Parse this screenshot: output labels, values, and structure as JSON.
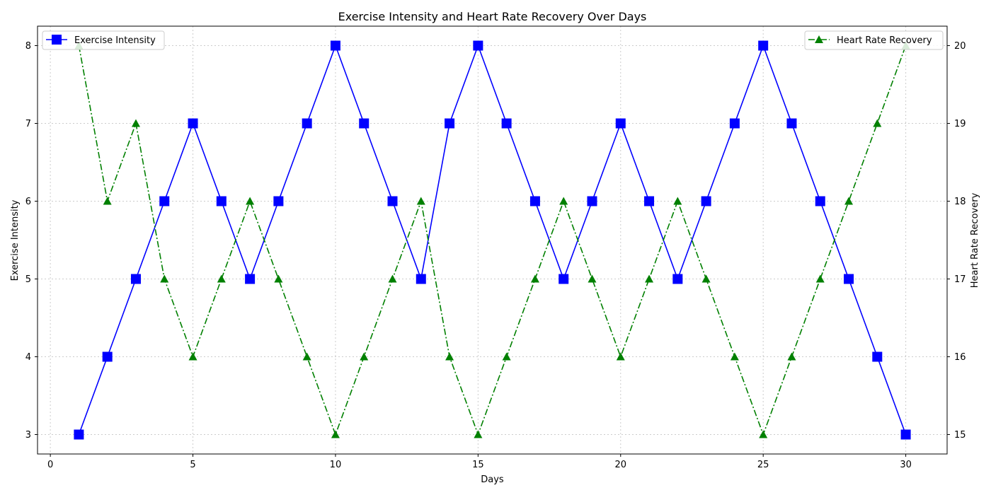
{
  "chart_data": {
    "type": "line",
    "title": "Exercise Intensity and Heart Rate Recovery Over Days",
    "xlabel": "Days",
    "ylabel_left": "Exercise Intensity",
    "ylabel_right": "Heart Rate Recovery",
    "xlim": [
      -0.45,
      31.45
    ],
    "ylim_left": [
      2.75,
      8.25
    ],
    "ylim_right": [
      14.75,
      20.25
    ],
    "x_ticks": [
      0,
      5,
      10,
      15,
      20,
      25,
      30
    ],
    "y_ticks_left": [
      3,
      4,
      5,
      6,
      7,
      8
    ],
    "y_ticks_right": [
      15,
      16,
      17,
      18,
      19,
      20
    ],
    "grid": true,
    "x": [
      1,
      2,
      3,
      4,
      5,
      6,
      7,
      8,
      9,
      10,
      11,
      12,
      13,
      14,
      15,
      16,
      17,
      18,
      19,
      20,
      21,
      22,
      23,
      24,
      25,
      26,
      27,
      28,
      29,
      30
    ],
    "series": [
      {
        "name": "Exercise Intensity",
        "axis": "left",
        "color": "#0000ff",
        "marker": "square",
        "line_style": "solid",
        "legend_position": "top-left",
        "values": [
          3,
          4,
          5,
          6,
          7,
          6,
          5,
          6,
          7,
          8,
          7,
          6,
          5,
          7,
          8,
          7,
          6,
          5,
          6,
          7,
          6,
          5,
          6,
          7,
          8,
          7,
          6,
          5,
          4,
          3
        ]
      },
      {
        "name": "Heart Rate Recovery",
        "axis": "right",
        "color": "#008000",
        "marker": "triangle",
        "line_style": "dash-dot",
        "legend_position": "top-right",
        "values": [
          20,
          18,
          19,
          17,
          16,
          17,
          18,
          17,
          16,
          15,
          16,
          17,
          18,
          16,
          15,
          16,
          17,
          18,
          17,
          16,
          17,
          18,
          17,
          16,
          15,
          16,
          17,
          18,
          19,
          20
        ]
      }
    ]
  }
}
